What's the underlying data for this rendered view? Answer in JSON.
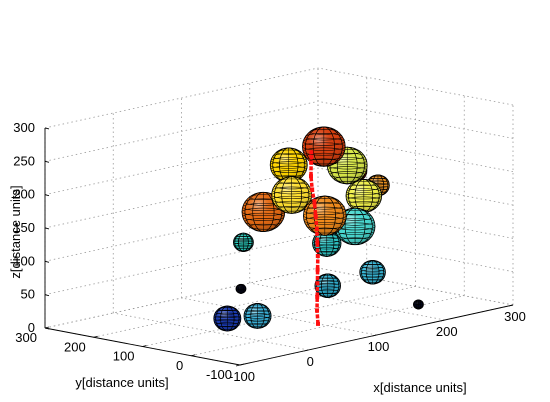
{
  "chart_data": {
    "type": "scatter",
    "subtype": "3d-spheres-with-path",
    "title": "",
    "xlabel": "x[distance units]",
    "ylabel": "y[distance units]",
    "zlabel": "z[distance units]",
    "xlim": [
      -100,
      300
    ],
    "ylim": [
      -100,
      300
    ],
    "zlim": [
      0,
      300
    ],
    "xticks": [
      "-100",
      "0",
      "100",
      "200",
      "300"
    ],
    "yticks": [
      "-100",
      "0",
      "100",
      "200",
      "300"
    ],
    "zticks": [
      "0",
      "50",
      "100",
      "150",
      "200",
      "250",
      "300"
    ],
    "grid": true,
    "colormap": "jet",
    "spheres": [
      {
        "x": 100,
        "y": 80,
        "z": 230,
        "r": 26,
        "color": "#ffd400"
      },
      {
        "x": 150,
        "y": 30,
        "z": 225,
        "r": 28,
        "color": "#d8e84a"
      },
      {
        "x": 130,
        "y": 50,
        "z": 255,
        "r": 30,
        "color": "#d84010"
      },
      {
        "x": 160,
        "y": 30,
        "z": 215,
        "r": 18,
        "color": "#c41a0a"
      },
      {
        "x": 195,
        "y": 30,
        "z": 185,
        "r": 16,
        "color": "#e89020"
      },
      {
        "x": 70,
        "y": 90,
        "z": 165,
        "r": 30,
        "color": "#e46a14"
      },
      {
        "x": 90,
        "y": 60,
        "z": 190,
        "r": 28,
        "color": "#ffe030"
      },
      {
        "x": 160,
        "y": 10,
        "z": 180,
        "r": 25,
        "color": "#f0f04a"
      },
      {
        "x": 140,
        "y": 0,
        "z": 140,
        "r": 28,
        "color": "#4ad8d0"
      },
      {
        "x": 110,
        "y": 20,
        "z": 160,
        "r": 30,
        "color": "#f08a1c"
      },
      {
        "x": 55,
        "y": 110,
        "z": 120,
        "r": 14,
        "color": "#2ad0c0"
      },
      {
        "x": 120,
        "y": 30,
        "z": 115,
        "r": 20,
        "color": "#30c8c8"
      },
      {
        "x": 155,
        "y": -15,
        "z": 70,
        "r": 18,
        "color": "#38b8d8"
      },
      {
        "x": 100,
        "y": 0,
        "z": 60,
        "r": 18,
        "color": "#30b0d0"
      },
      {
        "x": 30,
        "y": 80,
        "z": 60,
        "r": 7,
        "color": "#08104a"
      },
      {
        "x": 10,
        "y": 80,
        "z": 20,
        "r": 19,
        "color": "#1a3ab0"
      },
      {
        "x": 40,
        "y": 60,
        "z": 20,
        "r": 19,
        "color": "#3ab0d8"
      },
      {
        "x": 190,
        "y": -60,
        "z": 20,
        "r": 7,
        "color": "#08104a"
      }
    ],
    "path": {
      "color": "#ff1010",
      "points": [
        [
          100,
          20,
          0
        ],
        [
          100,
          22,
          20
        ],
        [
          101,
          23,
          40
        ],
        [
          102,
          24,
          60
        ],
        [
          103,
          25,
          80
        ],
        [
          104,
          26,
          100
        ],
        [
          104,
          27,
          120
        ],
        [
          104,
          28,
          140
        ],
        [
          103,
          29,
          160
        ],
        [
          102,
          30,
          180
        ],
        [
          100,
          32,
          200
        ],
        [
          99,
          33,
          220
        ],
        [
          100,
          34,
          240
        ],
        [
          101,
          35,
          255
        ]
      ]
    }
  }
}
